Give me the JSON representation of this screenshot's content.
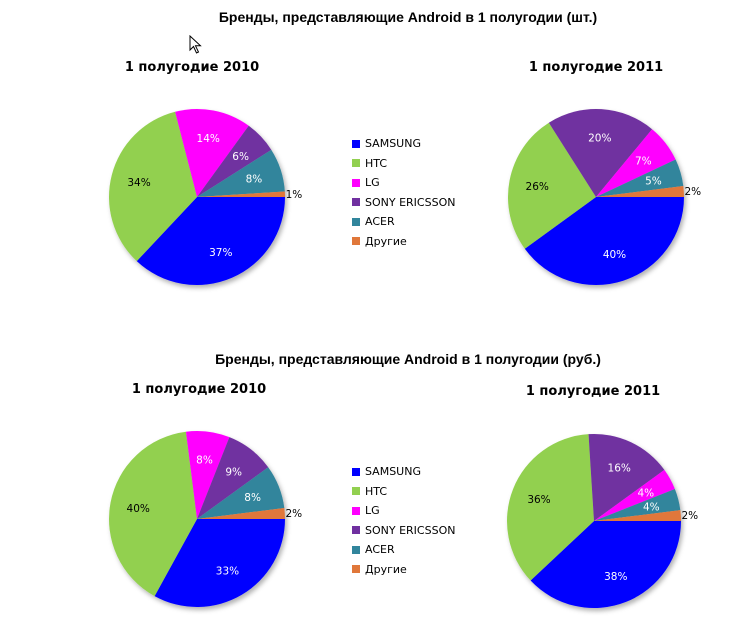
{
  "colors": {
    "SAMSUNG": "#0000ff",
    "HTC": "#92d050",
    "LG": "#ff00ff",
    "SONY ERICSSON": "#7030a0",
    "ACER": "#31859c",
    "Другие": "#e0773a"
  },
  "legend": [
    "SAMSUNG",
    "HTC",
    "LG",
    "SONY ERICSSON",
    "ACER",
    "Другие"
  ],
  "sections": [
    {
      "title": "Бренды,  представляющие Android в 1 полугодии (шт.)"
    },
    {
      "title": "Бренды, представляющие Android в 1 полугодии (руб.)"
    }
  ],
  "chart_data": [
    {
      "type": "pie",
      "title": "1 полугодие 2010",
      "unit": "шт.",
      "slices": [
        {
          "name": "SAMSUNG",
          "value": 37
        },
        {
          "name": "HTC",
          "value": 34
        },
        {
          "name": "LG",
          "value": 14
        },
        {
          "name": "SONY ERICSSON",
          "value": 6
        },
        {
          "name": "ACER",
          "value": 8
        },
        {
          "name": "Другие",
          "value": 1
        }
      ]
    },
    {
      "type": "pie",
      "title": "1 полугодие 2011",
      "unit": "шт.",
      "slices": [
        {
          "name": "SAMSUNG",
          "value": 40
        },
        {
          "name": "HTC",
          "value": 26
        },
        {
          "name": "SONY ERICSSON",
          "value": 20
        },
        {
          "name": "LG",
          "value": 7
        },
        {
          "name": "ACER",
          "value": 5
        },
        {
          "name": "Другие",
          "value": 2
        }
      ]
    },
    {
      "type": "pie",
      "title": "1 полугодие 2010",
      "unit": "руб.",
      "slices": [
        {
          "name": "SAMSUNG",
          "value": 33
        },
        {
          "name": "HTC",
          "value": 40
        },
        {
          "name": "LG",
          "value": 8
        },
        {
          "name": "SONY ERICSSON",
          "value": 9
        },
        {
          "name": "ACER",
          "value": 8
        },
        {
          "name": "Другие",
          "value": 2
        }
      ]
    },
    {
      "type": "pie",
      "title": "1 полугодие 2011",
      "unit": "руб.",
      "slices": [
        {
          "name": "SAMSUNG",
          "value": 38
        },
        {
          "name": "HTC",
          "value": 36
        },
        {
          "name": "SONY ERICSSON",
          "value": 16
        },
        {
          "name": "LG",
          "value": 4
        },
        {
          "name": "ACER",
          "value": 4
        },
        {
          "name": "Другие",
          "value": 2
        }
      ]
    }
  ]
}
